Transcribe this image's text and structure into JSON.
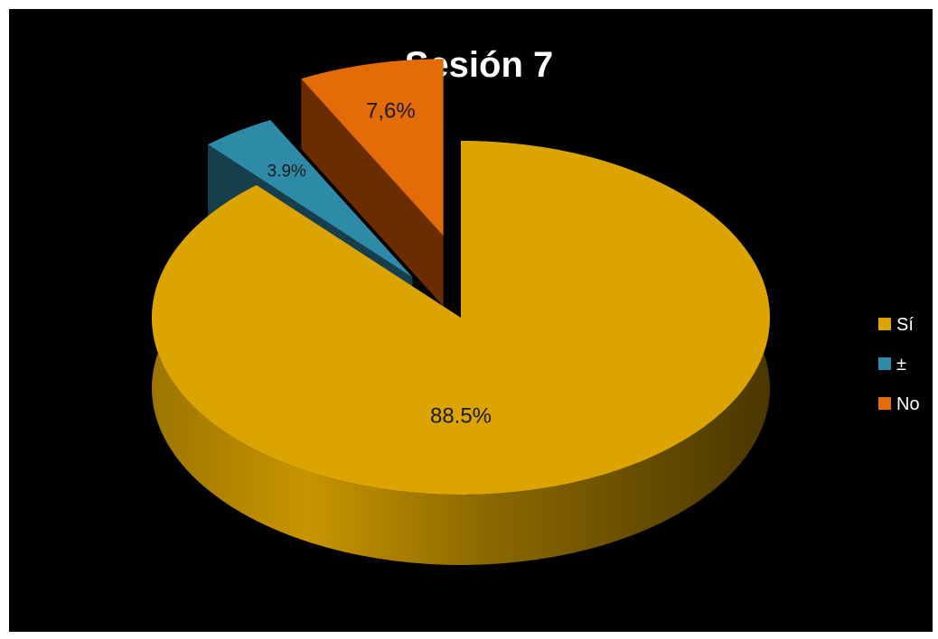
{
  "chart_data": {
    "type": "pie",
    "title": "Sesión 7",
    "categories": [
      "Sí",
      "±",
      "No"
    ],
    "values": [
      88.5,
      3.9,
      7.6
    ],
    "data_labels": [
      "88.5%",
      "3.9%",
      "7,6%"
    ],
    "colors": [
      "#dca400",
      "#2e8ba8",
      "#e36c09"
    ],
    "legend_position": "right",
    "style": "3d-exploded"
  }
}
